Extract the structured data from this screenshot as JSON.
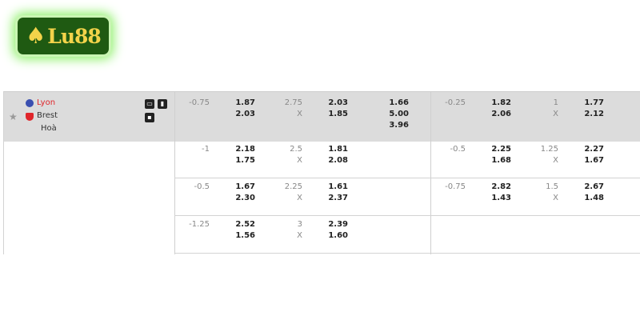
{
  "logo": {
    "text": "Lu88",
    "icon": "spade-icon"
  },
  "match": {
    "home": "Lyon",
    "away": "Brest",
    "draw": "Hoà"
  },
  "colors": {
    "header_bg": "#dcdcdc",
    "home_team": "#e0262b",
    "logo_bg": "#1f5a12",
    "logo_text": "#f3d34a"
  },
  "icons": [
    "tv-icon",
    "stats-icon",
    "lineup-icon",
    "star-icon"
  ],
  "rows": [
    {
      "hcap": "-0.75",
      "hcap_odds": [
        "1.87",
        "2.03"
      ],
      "ou": "2.75",
      "ou_x": "X",
      "ou_odds": [
        "2.03",
        "1.85"
      ],
      "x12": [
        "1.66",
        "5.00",
        "3.96"
      ],
      "h_hcap": "-0.25",
      "h_hcap_odds": [
        "1.82",
        "2.06"
      ],
      "h_ou": "1",
      "h_ou_x": "X",
      "h_ou_odds": [
        "1.77",
        "2.12"
      ]
    },
    {
      "hcap": "-1",
      "hcap_odds": [
        "2.18",
        "1.75"
      ],
      "ou": "2.5",
      "ou_x": "X",
      "ou_odds": [
        "1.81",
        "2.08"
      ],
      "h_hcap": "-0.5",
      "h_hcap_odds": [
        "2.25",
        "1.68"
      ],
      "h_ou": "1.25",
      "h_ou_x": "X",
      "h_ou_odds": [
        "2.27",
        "1.67"
      ]
    },
    {
      "hcap": "-0.5",
      "hcap_odds": [
        "1.67",
        "2.30"
      ],
      "ou": "2.25",
      "ou_x": "X",
      "ou_odds": [
        "1.61",
        "2.37"
      ],
      "h_hcap": "-0.75",
      "h_hcap_odds": [
        "2.82",
        "1.43"
      ],
      "h_ou": "1.5",
      "h_ou_x": "X",
      "h_ou_odds": [
        "2.67",
        "1.48"
      ]
    },
    {
      "hcap": "-1.25",
      "hcap_odds": [
        "2.52",
        "1.56"
      ],
      "ou": "3",
      "ou_x": "X",
      "ou_odds": [
        "2.39",
        "1.60"
      ]
    }
  ]
}
